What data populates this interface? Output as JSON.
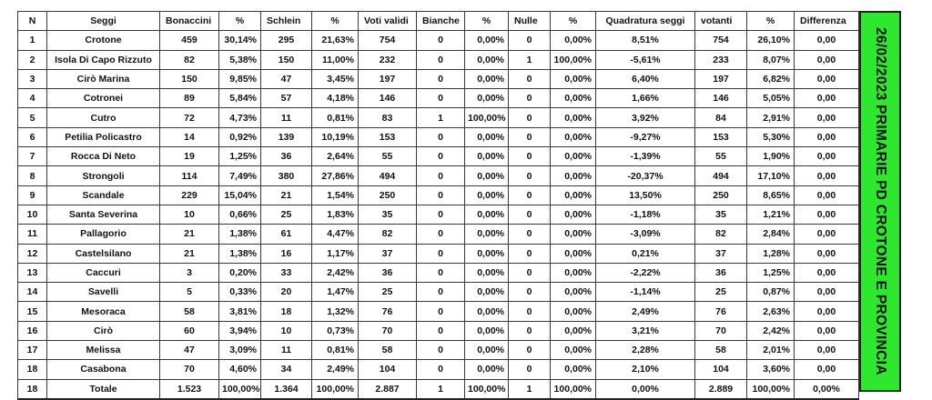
{
  "banner": "26/02/2023 PRIMARIE PD CROTONE E PROVINCIA",
  "headers": [
    "N",
    "Seggi",
    "Bonaccini",
    "%",
    "Schlein",
    "%",
    "Voti validi",
    "Bianche",
    "%",
    "Nulle",
    "%",
    "Quadratura seggi",
    "votanti",
    "%",
    "Differenza"
  ],
  "rows": [
    [
      "1",
      "Crotone",
      "459",
      "30,14%",
      "295",
      "21,63%",
      "754",
      "0",
      "0,00%",
      "0",
      "0,00%",
      "8,51%",
      "754",
      "26,10%",
      "0,00"
    ],
    [
      "2",
      "Isola Di Capo Rizzuto",
      "82",
      "5,38%",
      "150",
      "11,00%",
      "232",
      "0",
      "0,00%",
      "1",
      "100,00%",
      "-5,61%",
      "233",
      "8,07%",
      "0,00"
    ],
    [
      "3",
      "Cirò Marina",
      "150",
      "9,85%",
      "47",
      "3,45%",
      "197",
      "0",
      "0,00%",
      "0",
      "0,00%",
      "6,40%",
      "197",
      "6,82%",
      "0,00"
    ],
    [
      "4",
      "Cotronei",
      "89",
      "5,84%",
      "57",
      "4,18%",
      "146",
      "0",
      "0,00%",
      "0",
      "0,00%",
      "1,66%",
      "146",
      "5,05%",
      "0,00"
    ],
    [
      "5",
      "Cutro",
      "72",
      "4,73%",
      "11",
      "0,81%",
      "83",
      "1",
      "100,00%",
      "0",
      "0,00%",
      "3,92%",
      "84",
      "2,91%",
      "0,00"
    ],
    [
      "6",
      "Petilia Policastro",
      "14",
      "0,92%",
      "139",
      "10,19%",
      "153",
      "0",
      "0,00%",
      "0",
      "0,00%",
      "-9,27%",
      "153",
      "5,30%",
      "0,00"
    ],
    [
      "7",
      "Rocca Di Neto",
      "19",
      "1,25%",
      "36",
      "2,64%",
      "55",
      "0",
      "0,00%",
      "0",
      "0,00%",
      "-1,39%",
      "55",
      "1,90%",
      "0,00"
    ],
    [
      "8",
      "Strongoli",
      "114",
      "7,49%",
      "380",
      "27,86%",
      "494",
      "0",
      "0,00%",
      "0",
      "0,00%",
      "-20,37%",
      "494",
      "17,10%",
      "0,00"
    ],
    [
      "9",
      "Scandale",
      "229",
      "15,04%",
      "21",
      "1,54%",
      "250",
      "0",
      "0,00%",
      "0",
      "0,00%",
      "13,50%",
      "250",
      "8,65%",
      "0,00"
    ],
    [
      "10",
      "Santa Severina",
      "10",
      "0,66%",
      "25",
      "1,83%",
      "35",
      "0",
      "0,00%",
      "0",
      "0,00%",
      "-1,18%",
      "35",
      "1,21%",
      "0,00"
    ],
    [
      "11",
      "Pallagorio",
      "21",
      "1,38%",
      "61",
      "4,47%",
      "82",
      "0",
      "0,00%",
      "0",
      "0,00%",
      "-3,09%",
      "82",
      "2,84%",
      "0,00"
    ],
    [
      "12",
      "Castelsilano",
      "21",
      "1,38%",
      "16",
      "1,17%",
      "37",
      "0",
      "0,00%",
      "0",
      "0,00%",
      "0,21%",
      "37",
      "1,28%",
      "0,00"
    ],
    [
      "13",
      "Caccuri",
      "3",
      "0,20%",
      "33",
      "2,42%",
      "36",
      "0",
      "0,00%",
      "0",
      "0,00%",
      "-2,22%",
      "36",
      "1,25%",
      "0,00"
    ],
    [
      "14",
      "Savelli",
      "5",
      "0,33%",
      "20",
      "1,47%",
      "25",
      "0",
      "0,00%",
      "0",
      "0,00%",
      "-1,14%",
      "25",
      "0,87%",
      "0,00"
    ],
    [
      "15",
      "Mesoraca",
      "58",
      "3,81%",
      "18",
      "1,32%",
      "76",
      "0",
      "0,00%",
      "0",
      "0,00%",
      "2,49%",
      "76",
      "2,63%",
      "0,00"
    ],
    [
      "16",
      "Cirò",
      "60",
      "3,94%",
      "10",
      "0,73%",
      "70",
      "0",
      "0,00%",
      "0",
      "0,00%",
      "3,21%",
      "70",
      "2,42%",
      "0,00"
    ],
    [
      "17",
      "Melissa",
      "47",
      "3,09%",
      "11",
      "0,81%",
      "58",
      "0",
      "0,00%",
      "0",
      "0,00%",
      "2,28%",
      "58",
      "2,01%",
      "0,00"
    ],
    [
      "18",
      "Casabona",
      "70",
      "4,60%",
      "34",
      "2,49%",
      "104",
      "0",
      "0,00%",
      "0",
      "0,00%",
      "2,10%",
      "104",
      "3,60%",
      "0,00"
    ],
    [
      "18",
      "Totale",
      "1.523",
      "100,00%",
      "1.364",
      "100,00%",
      "2.887",
      "1",
      "100,00%",
      "1",
      "100,00%",
      "0,00%",
      "2.889",
      "100,00%",
      "0,00%"
    ]
  ],
  "colors": {
    "banner_bg": "#2ee72e",
    "border": "#3a3a3a"
  }
}
